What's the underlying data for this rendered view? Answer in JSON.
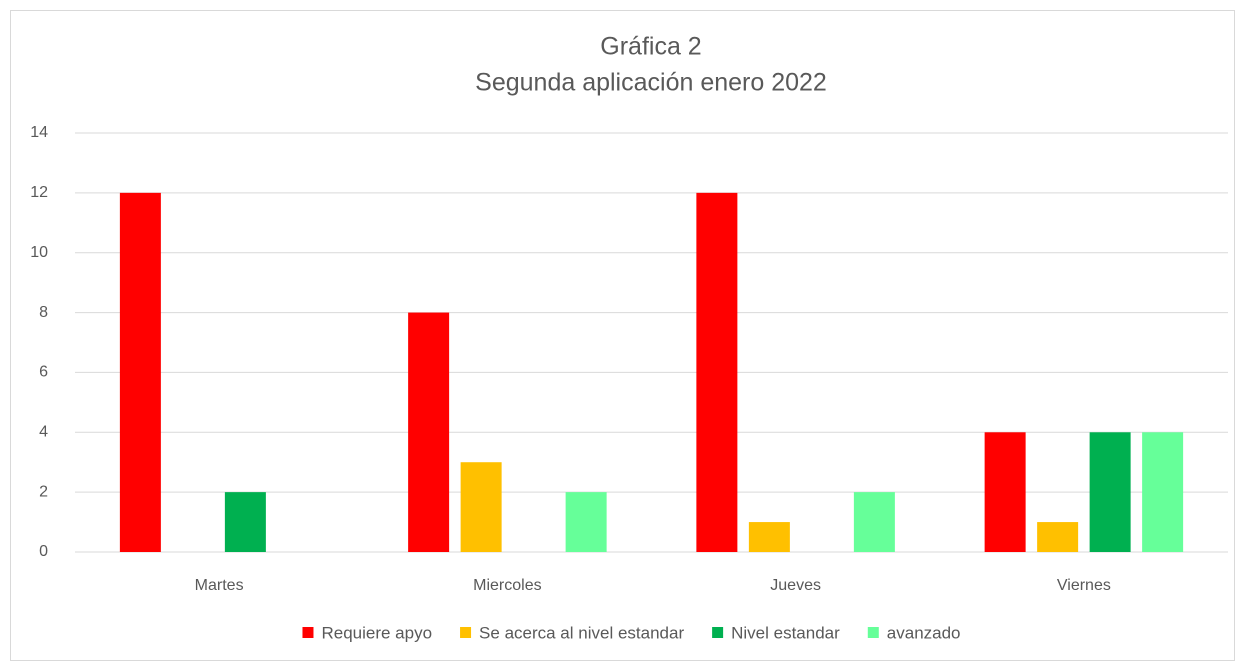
{
  "chart_data": {
    "type": "bar",
    "title": "Gráfica 2",
    "subtitle": "Segunda aplicación enero 2022",
    "categories": [
      "Martes",
      "Miercoles",
      "Jueves",
      "Viernes"
    ],
    "series": [
      {
        "name": "Requiere apyo",
        "color": "#ff0000",
        "values": [
          12,
          8,
          12,
          4
        ]
      },
      {
        "name": "Se acerca al nivel estandar",
        "color": "#ffc000",
        "values": [
          0,
          3,
          1,
          1
        ]
      },
      {
        "name": "Nivel estandar",
        "color": "#00b050",
        "values": [
          2,
          0,
          0,
          4
        ]
      },
      {
        "name": "avanzado",
        "color": "#66ff99",
        "values": [
          0,
          2,
          2,
          4
        ]
      }
    ],
    "ylim": [
      0,
      14
    ],
    "yticks": [
      0,
      2,
      4,
      6,
      8,
      10,
      12,
      14
    ],
    "grid": true,
    "legend": "bottom"
  }
}
